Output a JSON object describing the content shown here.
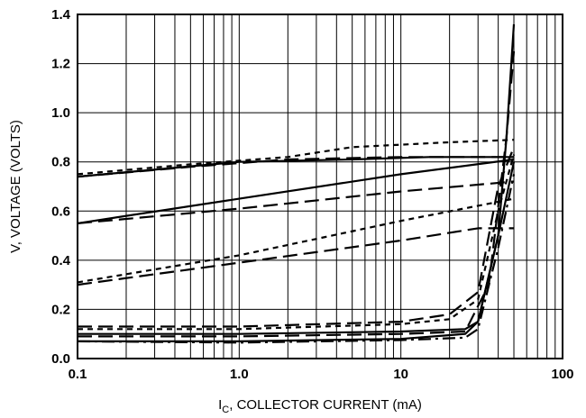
{
  "chart_data": {
    "type": "line",
    "title": "",
    "xlabel_main": "I",
    "xlabel_sub": "C",
    "xlabel_rest": ", COLLECTOR CURRENT (mA)",
    "ylabel": "V, VOLTAGE (VOLTS)",
    "xscale": "log",
    "xlim": [
      0.1,
      100
    ],
    "ylim": [
      0,
      1.4
    ],
    "x_ticks": [
      0.1,
      1,
      10,
      100
    ],
    "x_tick_labels": [
      "0.1",
      "1.0",
      "10",
      "100"
    ],
    "y_ticks": [
      0,
      0.2,
      0.4,
      0.6,
      0.8,
      1.0,
      1.2,
      1.4
    ],
    "y_tick_labels": [
      "0.0",
      "0.2",
      "0.4",
      "0.6",
      "0.8",
      "1.0",
      "1.2",
      "1.4"
    ],
    "grid": true,
    "legend": "none",
    "series": [
      {
        "style": "solid",
        "x": [
          0.1,
          1,
          5,
          15,
          50
        ],
        "y": [
          0.74,
          0.8,
          0.81,
          0.82,
          0.82
        ]
      },
      {
        "style": "long-dash",
        "x": [
          0.1,
          0.5,
          2,
          10,
          30,
          50
        ],
        "y": [
          0.74,
          0.78,
          0.81,
          0.82,
          0.82,
          0.82
        ]
      },
      {
        "style": "short-dash",
        "x": [
          0.1,
          0.5,
          2,
          5,
          20,
          50
        ],
        "y": [
          0.75,
          0.79,
          0.82,
          0.86,
          0.88,
          0.89
        ]
      },
      {
        "style": "solid",
        "x": [
          0.1,
          1,
          10,
          50
        ],
        "y": [
          0.55,
          0.65,
          0.75,
          0.81
        ]
      },
      {
        "style": "long-dash",
        "x": [
          0.1,
          1,
          10,
          50
        ],
        "y": [
          0.55,
          0.61,
          0.68,
          0.72
        ]
      },
      {
        "style": "short-dash",
        "x": [
          0.1,
          1,
          10,
          50
        ],
        "y": [
          0.31,
          0.42,
          0.56,
          0.65
        ]
      },
      {
        "style": "long-dash",
        "x": [
          0.1,
          1,
          10,
          30,
          50
        ],
        "y": [
          0.3,
          0.39,
          0.48,
          0.53,
          0.53
        ]
      },
      {
        "style": "short-dash",
        "x": [
          0.1,
          1,
          10,
          20,
          30,
          40,
          50
        ],
        "y": [
          0.12,
          0.12,
          0.14,
          0.16,
          0.24,
          0.6,
          0.83
        ]
      },
      {
        "style": "long-dash",
        "x": [
          0.1,
          1,
          10,
          20,
          30,
          40,
          50
        ],
        "y": [
          0.13,
          0.13,
          0.15,
          0.18,
          0.27,
          0.7,
          0.86
        ]
      },
      {
        "style": "solid",
        "x": [
          0.1,
          1,
          10,
          25,
          30,
          40,
          45,
          50
        ],
        "y": [
          0.1,
          0.1,
          0.11,
          0.12,
          0.15,
          0.5,
          0.9,
          1.36
        ]
      },
      {
        "style": "long-dash",
        "x": [
          0.1,
          1,
          10,
          25,
          35,
          45,
          50
        ],
        "y": [
          0.09,
          0.09,
          0.1,
          0.11,
          0.3,
          0.9,
          1.25
        ]
      },
      {
        "style": "solid",
        "x": [
          0.1,
          1,
          10,
          25,
          30,
          40,
          50
        ],
        "y": [
          0.07,
          0.07,
          0.08,
          0.1,
          0.15,
          0.5,
          0.8
        ]
      },
      {
        "style": "dash-dot",
        "x": [
          0.1,
          1,
          10,
          25,
          30,
          40,
          50
        ],
        "y": [
          0.07,
          0.065,
          0.075,
          0.085,
          0.12,
          0.45,
          0.75
        ]
      }
    ]
  }
}
